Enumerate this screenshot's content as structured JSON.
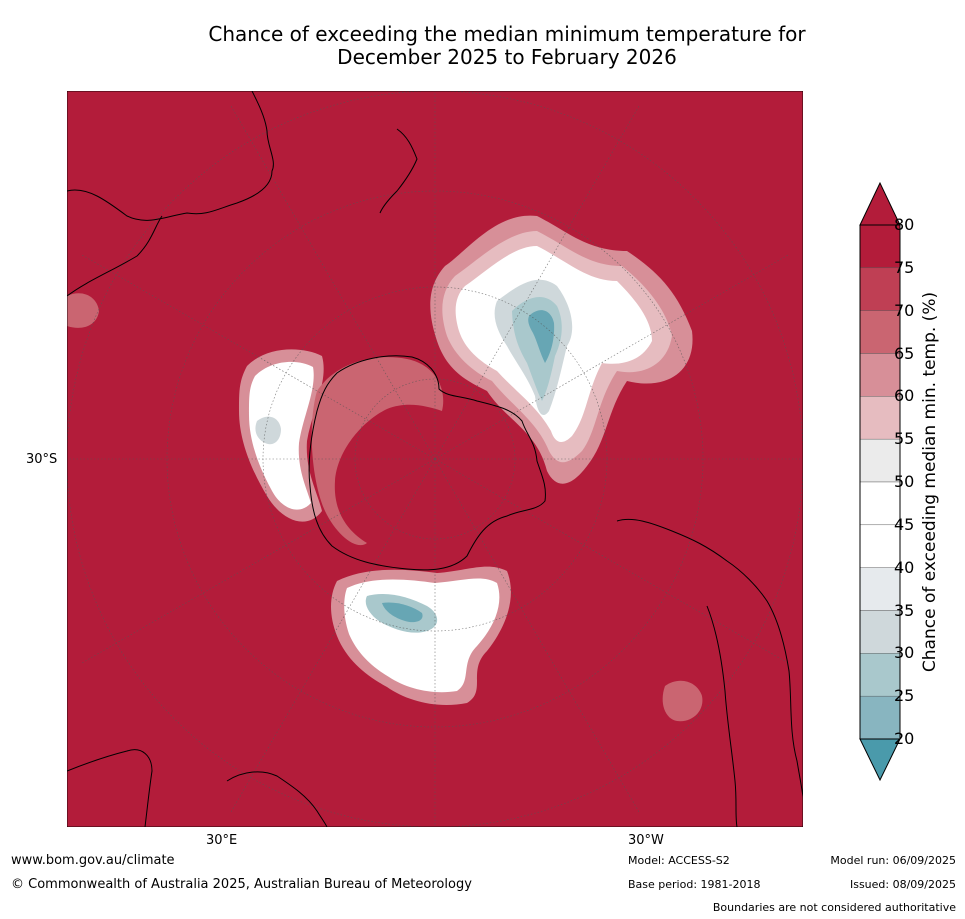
{
  "title": {
    "line1": "Chance of exceeding the median minimum temperature for",
    "line2": "December 2025 to February 2026"
  },
  "axis": {
    "lat_label": "30°S",
    "lon_label_left": "30°E",
    "lon_label_right": "30°W"
  },
  "colorbar": {
    "label": "Chance of exceeding median min. temp. (%)",
    "ticks": [
      "80",
      "75",
      "70",
      "65",
      "60",
      "55",
      "50",
      "45",
      "40",
      "35",
      "30",
      "25",
      "20"
    ],
    "colors": [
      "#b31c3a",
      "#bf3f54",
      "#ca6571",
      "#d78f98",
      "#e6bcc0",
      "#ebebeb",
      "#ffffff",
      "#ffffff",
      "#e6eaed",
      "#cfd8db",
      "#a9c8cc",
      "#88b5c0",
      "#67a6b4"
    ],
    "over_color": "#b31c3a",
    "under_color": "#4a9aab"
  },
  "colors": {
    "high": "#b31c3a",
    "neutral": "#ffffff",
    "low": "#4a9aab"
  },
  "footer": {
    "url": "www.bom.gov.au/climate",
    "copyright": "© Commonwealth of Australia 2025, Australian Bureau of Meteorology",
    "model": "Model: ACCESS-S2",
    "base_period": "Base period: 1981-2018",
    "model_run": "Model run: 06/09/2025",
    "issued": "Issued: 08/09/2025",
    "disclaimer": "Boundaries are not considered authoritative"
  }
}
